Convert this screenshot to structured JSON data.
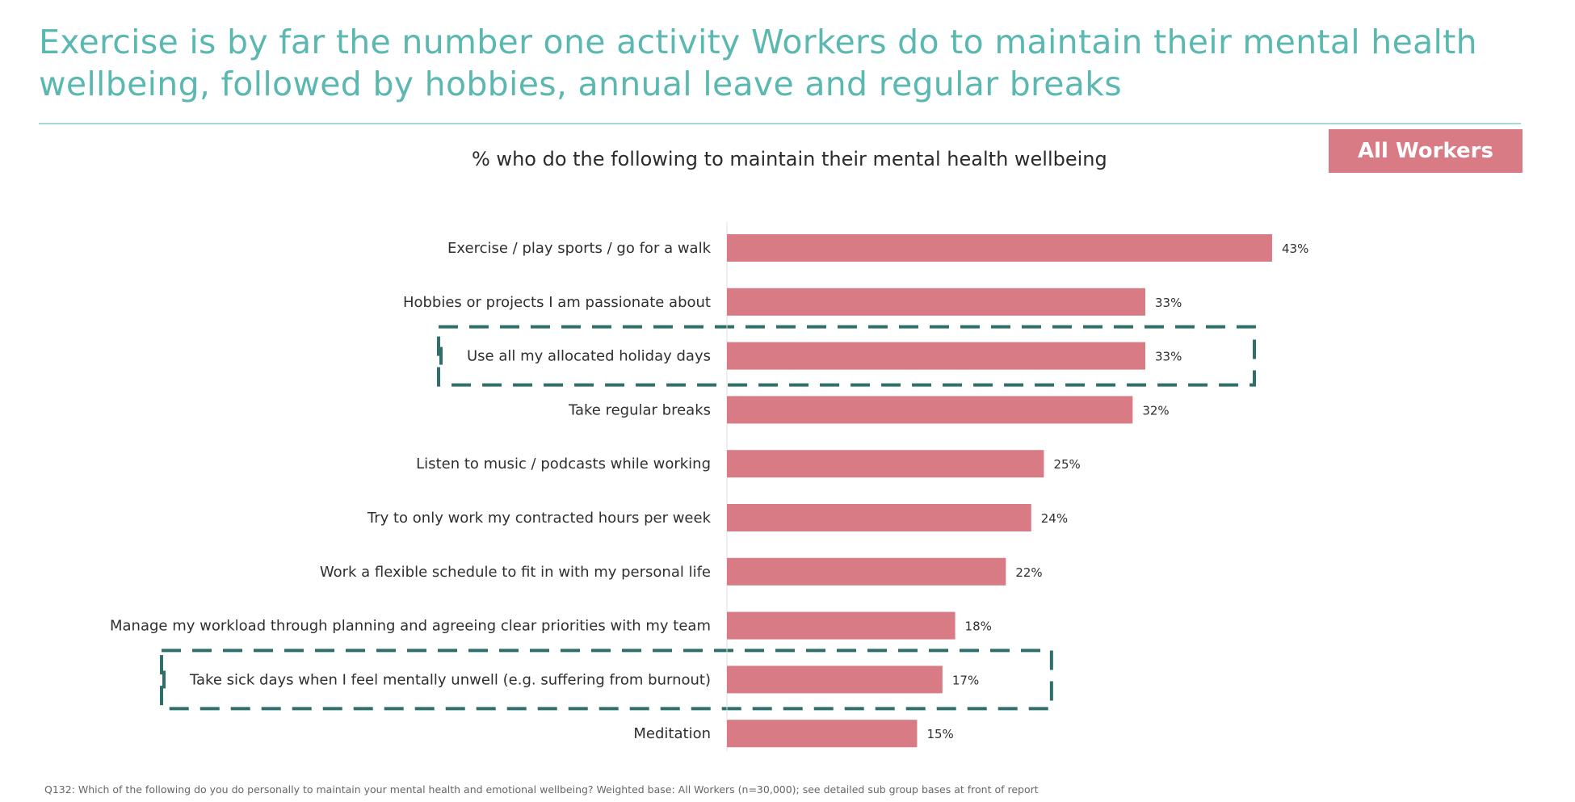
{
  "title": "Exercise is by far the number one activity Workers do to maintain their mental health wellbeing, followed by hobbies, annual leave and regular breaks",
  "badge": "All Workers",
  "footnote": "Q132: Which of the following do you do personally to maintain your mental health and emotional wellbeing? Weighted base: All Workers (n=30,000); see detailed sub group bases at front of report",
  "colors": {
    "title": "#5bb8b0",
    "bar": "#d97b84",
    "highlight": "#2f6f69"
  },
  "chart_data": {
    "type": "bar",
    "orientation": "horizontal",
    "title": "% who do the following to maintain their mental health wellbeing",
    "xlabel": "",
    "ylabel": "",
    "xlim": [
      0,
      43
    ],
    "categories": [
      "Exercise / play sports / go for a walk",
      "Hobbies or projects I am passionate about",
      "Use all my allocated holiday days",
      "Take regular breaks",
      "Listen to music / podcasts while working",
      "Try to only work my contracted hours per week",
      "Work a flexible schedule to fit in with my personal life",
      "Manage my workload through planning and agreeing clear priorities with my team",
      "Take sick days when I feel mentally unwell (e.g. suffering from burnout)",
      "Meditation"
    ],
    "values": [
      43,
      33,
      33,
      32,
      25,
      24,
      22,
      18,
      17,
      15
    ],
    "value_labels": [
      "43%",
      "33%",
      "33%",
      "32%",
      "25%",
      "24%",
      "22%",
      "18%",
      "17%",
      "15%"
    ],
    "highlighted": [
      2,
      8
    ],
    "grid": false
  }
}
